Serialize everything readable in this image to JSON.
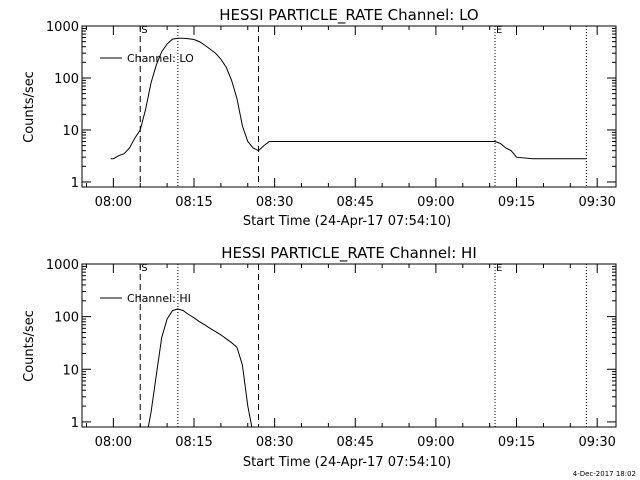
{
  "footer": {
    "timestamp": "4-Dec-2017 18:02"
  },
  "chart_data": [
    {
      "type": "line",
      "title": "HESSI PARTICLE_RATE Channel: LO",
      "xlabel": "Start Time (24-Apr-17 07:54:10)",
      "ylabel": "Counts/sec",
      "yscale": "log",
      "xlim": [
        "07:54:10",
        "09:33:30"
      ],
      "ylim": [
        0.8,
        1000
      ],
      "xticks": [
        "08:00",
        "08:15",
        "08:30",
        "08:45",
        "09:00",
        "09:15",
        "09:30"
      ],
      "yticks": [
        "1",
        "10",
        "100",
        "1000"
      ],
      "grid": false,
      "legend": {
        "position": "top-left",
        "label": "Channel: LO"
      },
      "markers": [
        {
          "time": "08:05:00",
          "style": "dashed",
          "label": "S"
        },
        {
          "time": "08:12:00",
          "style": "dotted",
          "label": ""
        },
        {
          "time": "08:27:00",
          "style": "dashed",
          "label": ""
        },
        {
          "time": "09:11:00",
          "style": "dotted",
          "label": "E"
        },
        {
          "time": "09:28:00",
          "style": "dotted",
          "label": ""
        }
      ],
      "series": [
        {
          "name": "Channel: LO",
          "x": [
            "07:59:30",
            "08:00:00",
            "08:01:00",
            "08:02:00",
            "08:03:00",
            "08:04:00",
            "08:05:00",
            "08:06:00",
            "08:07:00",
            "08:08:00",
            "08:09:00",
            "08:10:00",
            "08:11:00",
            "08:12:00",
            "08:13:00",
            "08:14:00",
            "08:15:00",
            "08:16:00",
            "08:17:00",
            "08:18:00",
            "08:19:00",
            "08:20:00",
            "08:21:00",
            "08:22:00",
            "08:23:00",
            "08:24:00",
            "08:25:00",
            "08:26:00",
            "08:27:00",
            "08:28:00",
            "08:29:00",
            "08:30:00",
            "08:33:00",
            "08:36:00",
            "08:39:00",
            "08:42:00",
            "08:45:00",
            "08:48:00",
            "08:51:00",
            "08:54:00",
            "08:57:00",
            "09:00:00",
            "09:03:00",
            "09:06:00",
            "09:09:00",
            "09:11:00",
            "09:12:00",
            "09:13:00",
            "09:14:00",
            "09:15:00",
            "09:18:00",
            "09:21:00",
            "09:24:00",
            "09:27:00",
            "09:28:00"
          ],
          "y": [
            2.8,
            2.8,
            3.2,
            3.5,
            4.5,
            7,
            10,
            25,
            80,
            180,
            320,
            450,
            560,
            580,
            580,
            570,
            550,
            500,
            430,
            360,
            300,
            230,
            160,
            90,
            40,
            12,
            6,
            4.5,
            4,
            5,
            6,
            6,
            6,
            6,
            6,
            6,
            6,
            6,
            6,
            6,
            6,
            6,
            6,
            6,
            6,
            6,
            5.5,
            4.5,
            4,
            3,
            2.8,
            2.8,
            2.8,
            2.8,
            2.8
          ]
        }
      ]
    },
    {
      "type": "line",
      "title": "HESSI PARTICLE_RATE Channel: HI",
      "xlabel": "Start Time (24-Apr-17 07:54:10)",
      "ylabel": "Counts/sec",
      "yscale": "log",
      "xlim": [
        "07:54:10",
        "09:33:30"
      ],
      "ylim": [
        0.8,
        1000
      ],
      "xticks": [
        "08:00",
        "08:15",
        "08:30",
        "08:45",
        "09:00",
        "09:15",
        "09:30"
      ],
      "yticks": [
        "1",
        "10",
        "100",
        "1000"
      ],
      "grid": false,
      "legend": {
        "position": "top-left",
        "label": "Channel: HI"
      },
      "markers": [
        {
          "time": "08:05:00",
          "style": "dashed",
          "label": "S"
        },
        {
          "time": "08:12:00",
          "style": "dotted",
          "label": ""
        },
        {
          "time": "08:27:00",
          "style": "dashed",
          "label": ""
        },
        {
          "time": "09:11:00",
          "style": "dotted",
          "label": "E"
        },
        {
          "time": "09:28:00",
          "style": "dotted",
          "label": ""
        }
      ],
      "series": [
        {
          "name": "Channel: HI",
          "x": [
            "08:06:30",
            "08:07:00",
            "08:08:00",
            "08:09:00",
            "08:10:00",
            "08:11:00",
            "08:12:00",
            "08:13:00",
            "08:14:00",
            "08:15:00",
            "08:16:00",
            "08:17:00",
            "08:18:00",
            "08:19:00",
            "08:20:00",
            "08:21:00",
            "08:22:00",
            "08:23:00",
            "08:24:00",
            "08:25:00",
            "08:25:45"
          ],
          "y": [
            0.8,
            1.5,
            8,
            40,
            90,
            130,
            140,
            130,
            110,
            95,
            80,
            70,
            60,
            52,
            45,
            38,
            32,
            26,
            12,
            2,
            0.8
          ]
        }
      ]
    }
  ]
}
